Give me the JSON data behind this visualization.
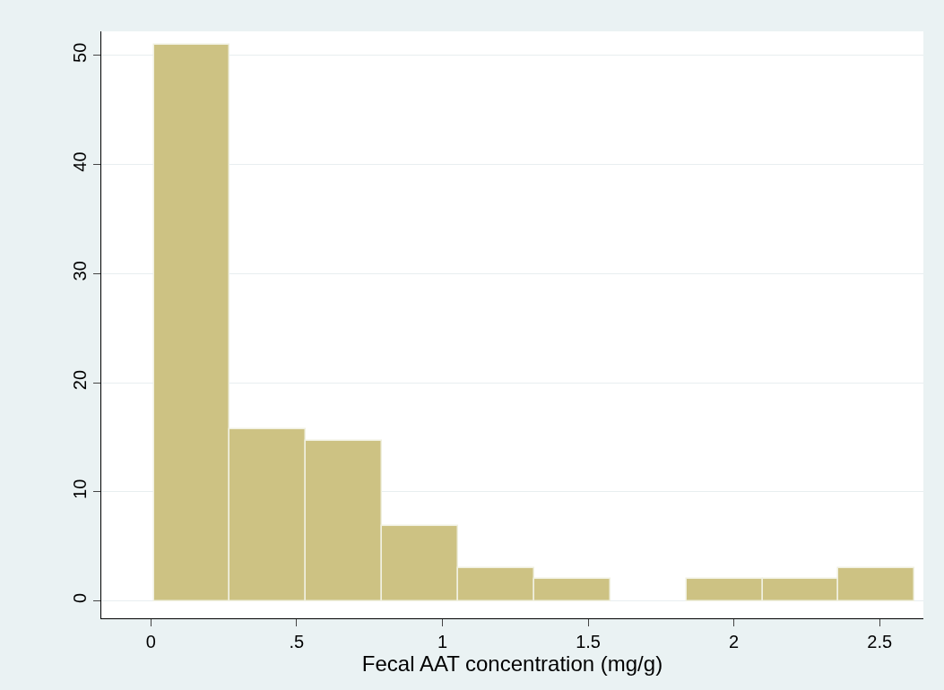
{
  "chart_data": {
    "type": "histogram",
    "xlabel": "Fecal AAT concentration (mg/g)",
    "bins": [
      0.01,
      0.271,
      0.532,
      0.793,
      1.054,
      1.315,
      1.576,
      1.837,
      2.098,
      2.359,
      2.62
    ],
    "values": [
      51,
      15.7,
      14.7,
      6.9,
      3,
      2,
      0,
      2,
      2,
      3
    ],
    "color": "#cdc283",
    "xlim": [
      -0.17,
      2.65
    ],
    "xticks": [
      {
        "value": 0,
        "label": "0"
      },
      {
        "value": 0.5,
        "label": ".5"
      },
      {
        "value": 1,
        "label": "1"
      },
      {
        "value": 1.5,
        "label": "1.5"
      },
      {
        "value": 2,
        "label": "2"
      },
      {
        "value": 2.5,
        "label": "2.5"
      }
    ],
    "ylim": [
      -1.6,
      52.2
    ],
    "yticks": [
      0,
      10,
      20,
      30,
      40,
      50
    ],
    "grid": "y"
  }
}
